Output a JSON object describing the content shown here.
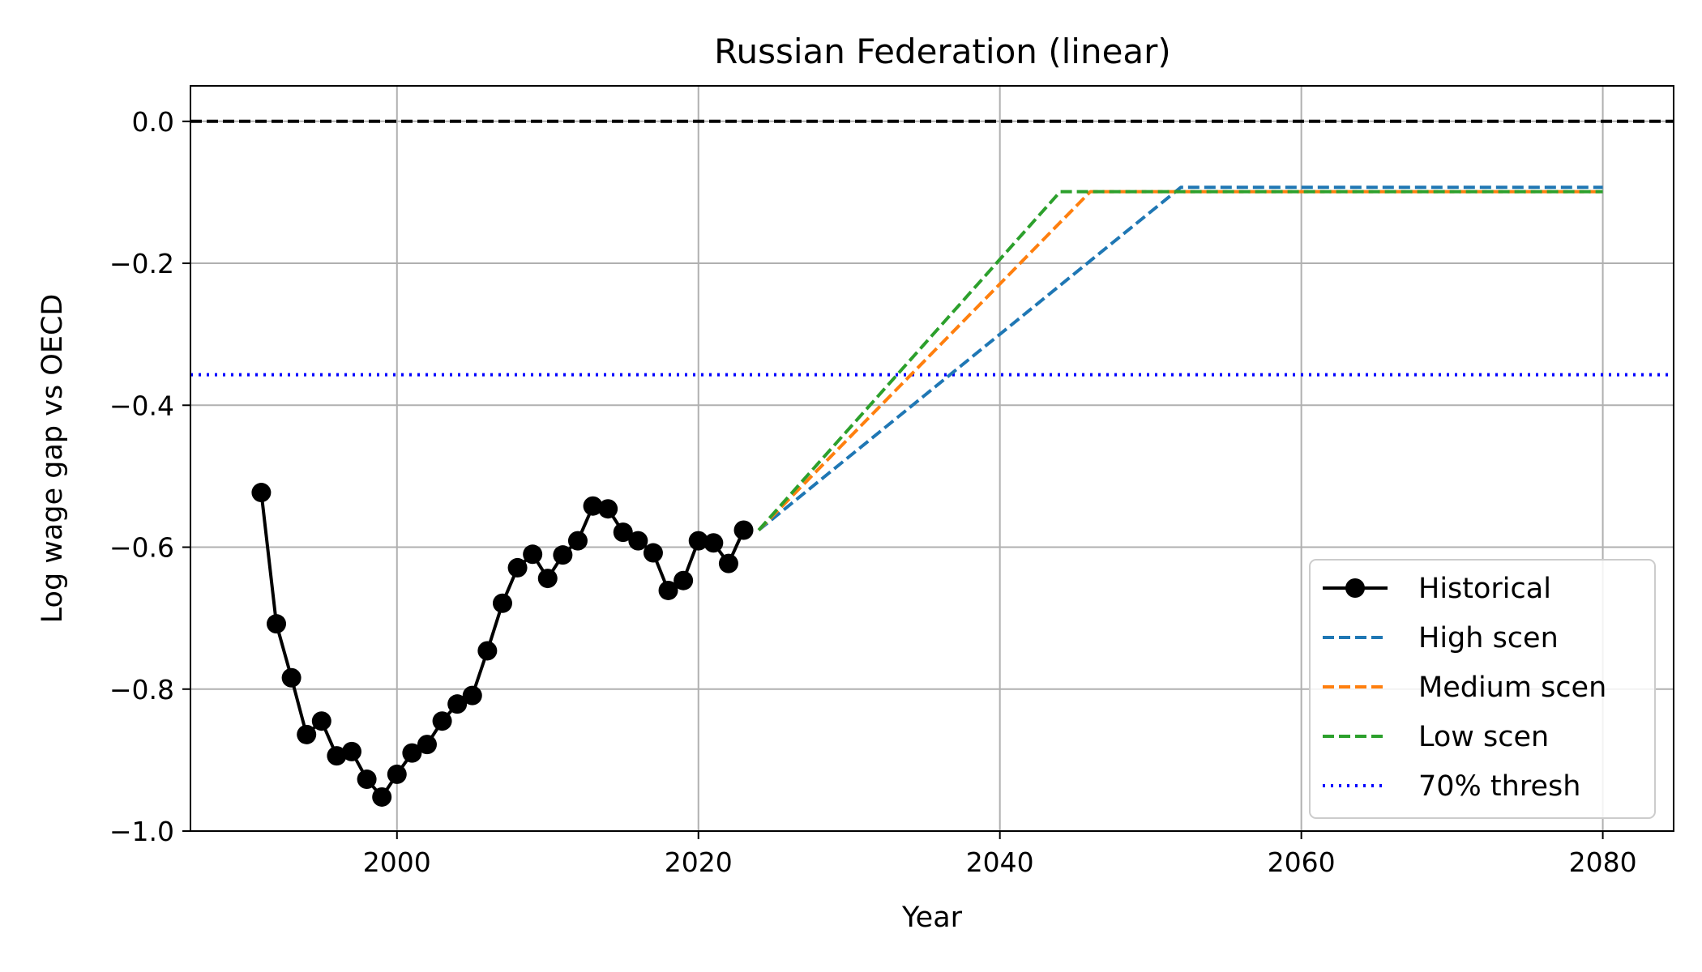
{
  "chart_data": {
    "type": "line",
    "title": "Russian Federation (linear)",
    "xlabel": "Year",
    "ylabel": "Log wage gap vs OECD",
    "xlim": [
      1986.3,
      2084.7
    ],
    "ylim": [
      -1.0,
      0.05
    ],
    "x_ticks": [
      2000,
      2020,
      2040,
      2060,
      2080
    ],
    "y_ticks": [
      0.0,
      -0.2,
      -0.4,
      -0.6,
      -0.8,
      -1.0
    ],
    "x_tick_labels": [
      "2000",
      "2020",
      "2040",
      "2060",
      "2080"
    ],
    "y_tick_labels": [
      "0.0",
      "−0.2",
      "−0.4",
      "−0.6",
      "−0.8",
      "−1.0"
    ],
    "grid": true,
    "legend_position": "lower-right",
    "reference_lines": [
      {
        "y": 0.0,
        "color": "#000000",
        "style": "dashed"
      }
    ],
    "series": [
      {
        "name": "Historical",
        "color": "#000000",
        "style": "solid-marker",
        "x": [
          1991,
          1992,
          1993,
          1994,
          1995,
          1996,
          1997,
          1998,
          1999,
          2000,
          2001,
          2002,
          2003,
          2004,
          2005,
          2006,
          2007,
          2008,
          2009,
          2010,
          2011,
          2012,
          2013,
          2014,
          2015,
          2016,
          2017,
          2018,
          2019,
          2020,
          2021,
          2022,
          2023
        ],
        "y": [
          -0.523,
          -0.708,
          -0.784,
          -0.864,
          -0.845,
          -0.894,
          -0.888,
          -0.927,
          -0.952,
          -0.92,
          -0.89,
          -0.878,
          -0.845,
          -0.821,
          -0.809,
          -0.746,
          -0.679,
          -0.629,
          -0.61,
          -0.644,
          -0.611,
          -0.591,
          -0.542,
          -0.546,
          -0.579,
          -0.591,
          -0.608,
          -0.661,
          -0.647,
          -0.591,
          -0.594,
          -0.623,
          -0.576
        ]
      },
      {
        "name": "High scen",
        "color": "#1f77b4",
        "style": "dashed",
        "x": [
          2024,
          2052,
          2080
        ],
        "y": [
          -0.576,
          -0.093,
          -0.093
        ]
      },
      {
        "name": "Medium scen",
        "color": "#ff7f0e",
        "style": "dashed",
        "x": [
          2024,
          2046,
          2080
        ],
        "y": [
          -0.576,
          -0.099,
          -0.099
        ]
      },
      {
        "name": "Low scen",
        "color": "#2ca02c",
        "style": "dashed",
        "x": [
          2024,
          2044,
          2080
        ],
        "y": [
          -0.576,
          -0.099,
          -0.099
        ]
      },
      {
        "name": "70% thresh",
        "color": "#0000ff",
        "style": "dotted",
        "x": [
          1986.3,
          2084.7
        ],
        "y": [
          -0.357,
          -0.357
        ]
      }
    ]
  }
}
